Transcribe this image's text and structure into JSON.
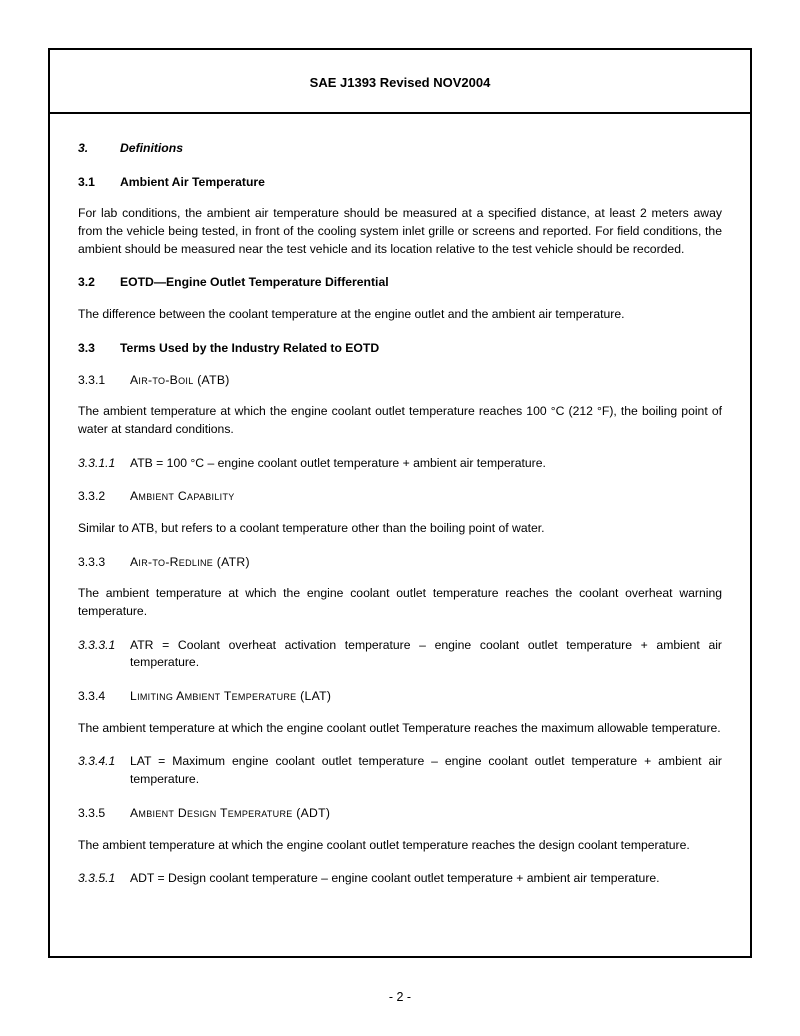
{
  "header": {
    "title": "SAE J1393 Revised NOV2004"
  },
  "pageNumber": "- 2 -",
  "s3": {
    "num": "3.",
    "title": "Definitions"
  },
  "s31": {
    "num": "3.1",
    "title": "Ambient Air Temperature",
    "body": "For lab conditions, the ambient air temperature should be measured at a specified distance, at least 2 meters away from the vehicle being tested, in front of the cooling system inlet grille or screens and reported.  For field conditions, the ambient should be measured near the test vehicle and its location relative to the test vehicle should be recorded."
  },
  "s32": {
    "num": "3.2",
    "title": "EOTD—Engine Outlet Temperature Differential",
    "body": "The difference between the coolant temperature at the engine outlet and the ambient air temperature."
  },
  "s33": {
    "num": "3.3",
    "title": "Terms Used by the Industry Related to EOTD"
  },
  "s331": {
    "num": "3.3.1",
    "title": "Air-to-Boil (ATB)",
    "body": "The ambient temperature at which the engine coolant outlet temperature reaches 100 °C (212 °F), the boiling point of water at standard conditions.",
    "fnum": "3.3.1.1",
    "formula": "ATB = 100 °C – engine coolant outlet temperature + ambient air temperature."
  },
  "s332": {
    "num": "3.3.2",
    "title": "Ambient Capability",
    "body": "Similar to ATB, but refers to a coolant temperature other than the boiling point of water."
  },
  "s333": {
    "num": "3.3.3",
    "title": "Air-to-Redline (ATR)",
    "body": "The ambient temperature at which the engine coolant outlet temperature reaches the coolant overheat warning temperature.",
    "fnum": "3.3.3.1",
    "formula": "ATR = Coolant overheat activation temperature – engine coolant outlet temperature + ambient air temperature."
  },
  "s334": {
    "num": "3.3.4",
    "title": "Limiting Ambient Temperature (LAT)",
    "body": "The ambient temperature at which the engine coolant outlet Temperature reaches the maximum allowable temperature.",
    "fnum": "3.3.4.1",
    "formula": "LAT = Maximum engine coolant outlet temperature – engine coolant outlet temperature + ambient air temperature."
  },
  "s335": {
    "num": "3.3.5",
    "title": "Ambient Design Temperature (ADT)",
    "body": "The ambient temperature at which the engine coolant outlet temperature reaches the design coolant temperature.",
    "fnum": "3.3.5.1",
    "formula": "ADT = Design coolant temperature – engine coolant outlet temperature + ambient air temperature."
  }
}
